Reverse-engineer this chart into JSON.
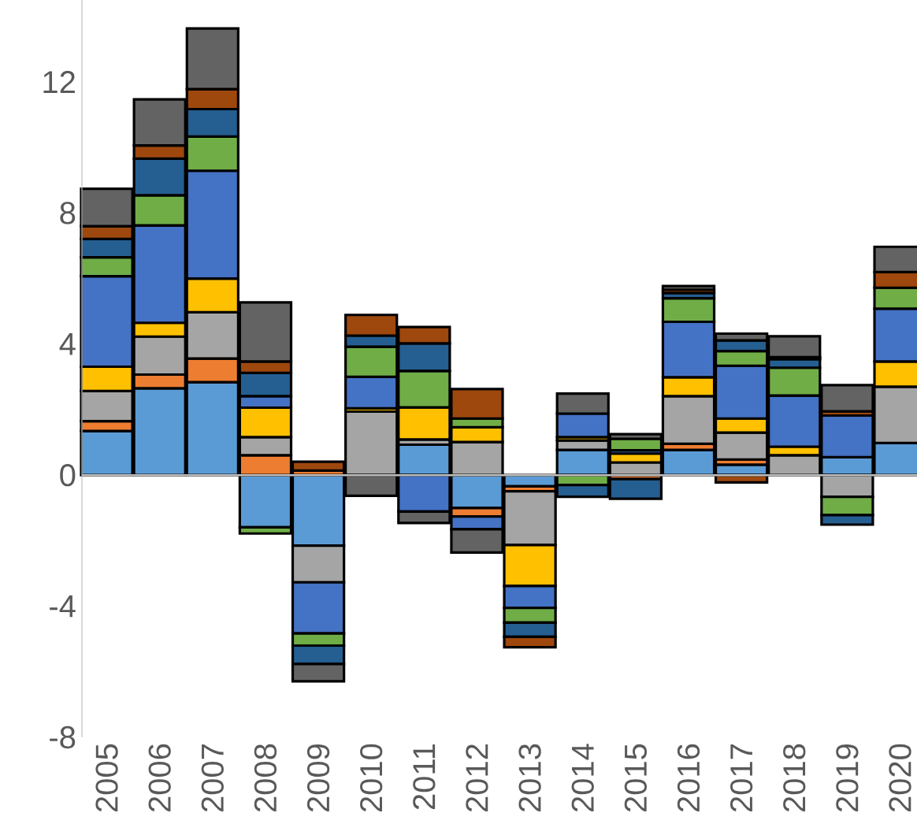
{
  "chart_data": {
    "type": "bar",
    "stacked": true,
    "categories": [
      "2005",
      "2006",
      "2007",
      "2008",
      "2009",
      "2010",
      "2011",
      "2012",
      "2013",
      "2014",
      "2015",
      "2016",
      "2017",
      "2018",
      "2019",
      "2020"
    ],
    "ylim": [
      -8,
      14.5
    ],
    "yticks": [
      -8,
      -4,
      0,
      4,
      8,
      12
    ],
    "series": [
      {
        "color": "#5b9bd5",
        "values": [
          1.35,
          2.65,
          2.84,
          -1.59,
          -2.15,
          null,
          0.93,
          -1.0,
          -0.34,
          0.77,
          null,
          0.77,
          0.32,
          null,
          0.55,
          0.98
        ]
      },
      {
        "color": "#ed7d31",
        "values": [
          0.3,
          0.42,
          0.72,
          0.61,
          0.14,
          null,
          null,
          -0.26,
          -0.15,
          null,
          -0.12,
          0.19,
          0.16,
          null,
          null,
          null
        ]
      },
      {
        "color": "#a5a5a5",
        "values": [
          0.92,
          1.16,
          1.41,
          0.55,
          -1.12,
          1.94,
          0.16,
          1.01,
          -1.64,
          0.29,
          0.39,
          1.45,
          0.82,
          0.61,
          -0.66,
          1.72
        ]
      },
      {
        "color": "#ffc000",
        "values": [
          0.74,
          0.42,
          1.03,
          0.9,
          null,
          0.1,
          0.98,
          0.45,
          -1.25,
          0.1,
          0.27,
          0.58,
          0.43,
          0.26,
          null,
          0.77
        ]
      },
      {
        "color": "#4472c4",
        "values": [
          2.76,
          2.97,
          3.29,
          0.35,
          -1.56,
          0.96,
          -1.11,
          -0.39,
          -0.67,
          0.72,
          0.1,
          1.69,
          1.61,
          1.56,
          1.27,
          1.61
        ]
      },
      {
        "color": "#70ad47",
        "values": [
          0.58,
          0.92,
          1.04,
          -0.19,
          -0.37,
          0.92,
          1.11,
          0.27,
          -0.45,
          -0.3,
          0.35,
          0.72,
          0.45,
          0.85,
          -0.56,
          0.64
        ]
      },
      {
        "color": "#255e91",
        "values": [
          0.56,
          1.12,
          0.84,
          0.71,
          -0.56,
          0.34,
          0.84,
          null,
          -0.43,
          -0.36,
          -0.6,
          0.16,
          0.32,
          0.26,
          -0.29,
          null
        ]
      },
      {
        "color": "#9e480e",
        "values": [
          0.39,
          0.4,
          0.61,
          0.35,
          0.27,
          0.63,
          0.5,
          0.9,
          -0.32,
          null,
          null,
          0.1,
          -0.22,
          0.06,
          0.13,
          0.48
        ]
      },
      {
        "color": "#636363",
        "values": [
          1.14,
          1.41,
          1.85,
          1.8,
          -0.53,
          -0.63,
          -0.35,
          -0.71,
          null,
          0.61,
          0.14,
          0.11,
          0.21,
          0.64,
          0.8,
          0.77
        ]
      }
    ]
  }
}
